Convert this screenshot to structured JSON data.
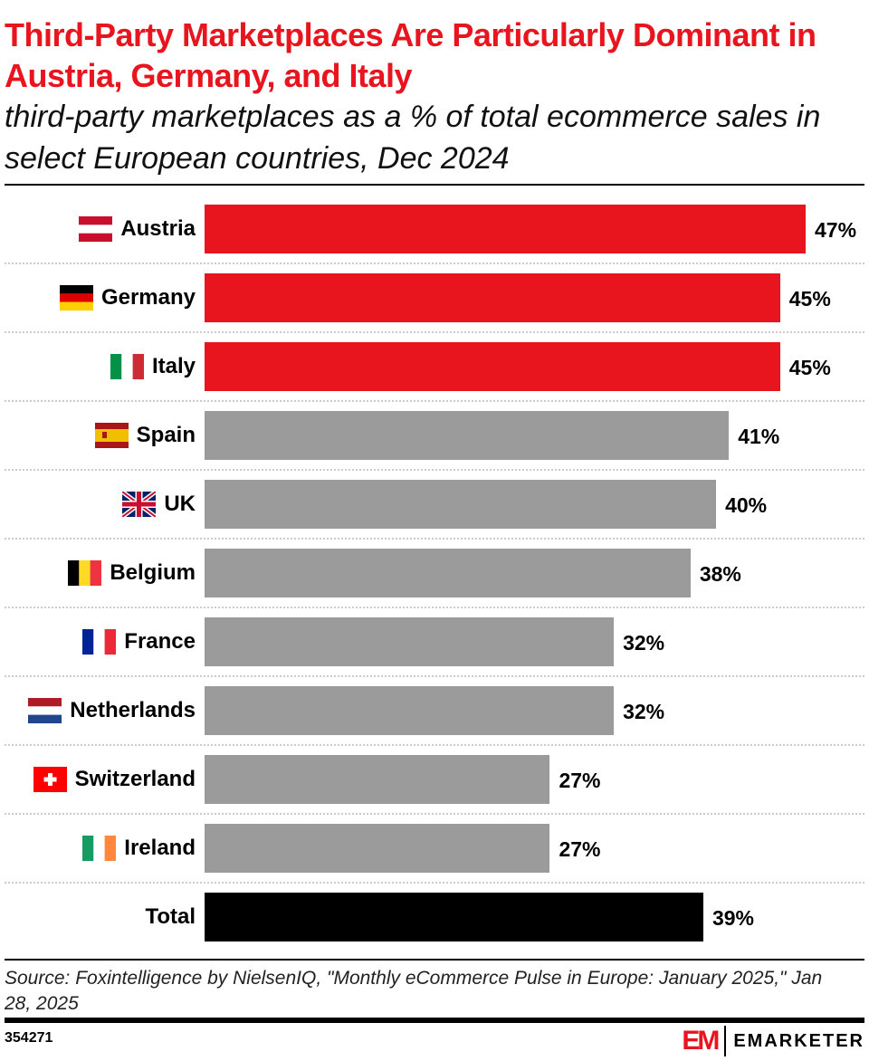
{
  "title": "Third-Party Marketplaces Are Particularly Dominant in Austria, Germany, and Italy",
  "subtitle": "third-party marketplaces as a % of total ecommerce sales in select European countries, Dec 2024",
  "source": "Source: Foxintelligence by NielsenIQ, \"Monthly eCommerce Pulse in Europe: January 2025,\" Jan 28, 2025",
  "chart_id": "354271",
  "brand": {
    "mark": "EM",
    "name": "EMARKETER"
  },
  "colors": {
    "highlight": "#e8141e",
    "default": "#9b9b9b",
    "total": "#000000"
  },
  "chart_data": {
    "type": "bar",
    "orientation": "horizontal",
    "title": "Third-Party Marketplaces Are Particularly Dominant in Austria, Germany, and Italy",
    "subtitle": "third-party marketplaces as a % of total ecommerce sales in select European countries, Dec 2024",
    "categories": [
      "Austria",
      "Germany",
      "Italy",
      "Spain",
      "UK",
      "Belgium",
      "France",
      "Netherlands",
      "Switzerland",
      "Ireland",
      "Total"
    ],
    "values": [
      47,
      45,
      45,
      41,
      40,
      38,
      32,
      32,
      27,
      27,
      39
    ],
    "value_labels": [
      "47%",
      "45%",
      "45%",
      "41%",
      "40%",
      "38%",
      "32%",
      "32%",
      "27%",
      "27%",
      "39%"
    ],
    "bar_colors": [
      "highlight",
      "highlight",
      "highlight",
      "default",
      "default",
      "default",
      "default",
      "default",
      "default",
      "default",
      "total"
    ],
    "flags": [
      "austria-flag",
      "germany-flag",
      "italy-flag",
      "spain-flag",
      "uk-flag",
      "belgium-flag",
      "france-flag",
      "netherlands-flag",
      "switzerland-flag",
      "ireland-flag",
      null
    ],
    "unit": "%",
    "grid": false,
    "legend": "none"
  }
}
